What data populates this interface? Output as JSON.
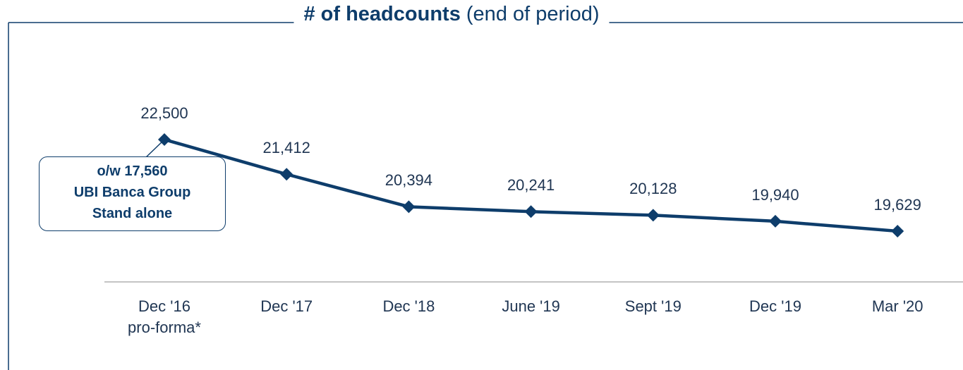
{
  "chart_data": {
    "type": "line",
    "title": "# of headcounts",
    "subtitle": "(end of period)",
    "categories": [
      "Dec '16\npro-forma*",
      "Dec '17",
      "Dec '18",
      "June '19",
      "Sept '19",
      "Dec '19",
      "Mar '20"
    ],
    "series": [
      {
        "name": "Headcounts",
        "color": "#0e3d6b",
        "values": [
          22500,
          21412,
          20394,
          20241,
          20128,
          19940,
          19629
        ],
        "value_labels": [
          "22,500",
          "21,412",
          "20,394",
          "20,241",
          "20,128",
          "19,940",
          "19,629"
        ]
      }
    ],
    "annotation": "o/w 17,560\nUBI Banca Group\nStand alone"
  }
}
